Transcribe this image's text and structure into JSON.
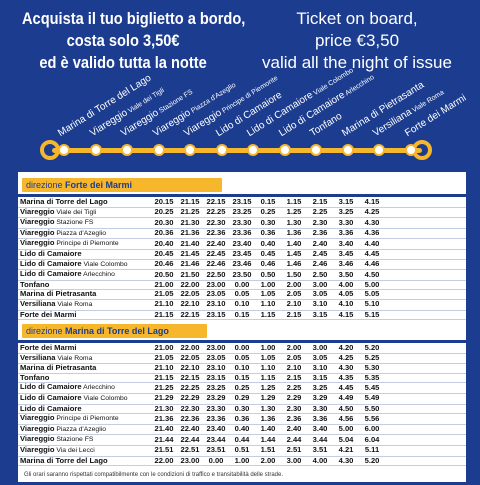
{
  "header": {
    "italian": [
      "Acquista il tuo biglietto a bordo,",
      "costa solo 3,50€",
      "ed è valido tutta la notte"
    ],
    "english": [
      "Ticket on board,",
      "price €3,50",
      "valid all the night of issue"
    ]
  },
  "route": {
    "stops": [
      {
        "main": "Marina di Torre del Lago",
        "sub": ""
      },
      {
        "main": "Viareggio",
        "sub": "Viale dei Tigli"
      },
      {
        "main": "Viareggio",
        "sub": "Stazione FS"
      },
      {
        "main": "Viareggio",
        "sub": "Piazza d'Azeglio"
      },
      {
        "main": "Viareggio",
        "sub": "Principe di Piemonte"
      },
      {
        "main": "Lido di Camaiore",
        "sub": ""
      },
      {
        "main": "Lido di Camaiore",
        "sub": "Viale Colombo"
      },
      {
        "main": "Lido di Camaiore",
        "sub": "Arlecchino"
      },
      {
        "main": "Tonfano",
        "sub": ""
      },
      {
        "main": "Marina di Pietrasanta",
        "sub": ""
      },
      {
        "main": "Versiliana",
        "sub": "Viale Roma"
      },
      {
        "main": "Forte dei Marmi",
        "sub": ""
      }
    ]
  },
  "timetable": {
    "north": {
      "direction_prefix": "direzione",
      "direction_name": "Forte dei Marmi",
      "rows": [
        {
          "main": "Marina di Torre del Lago",
          "sub": "",
          "times": [
            "20.15",
            "21.15",
            "22.15",
            "23.15",
            "0.15",
            "1.15",
            "2.15",
            "3.15",
            "4.15"
          ]
        },
        {
          "main": "Viareggio",
          "sub": "Viale dei Tigli",
          "times": [
            "20.25",
            "21.25",
            "22.25",
            "23.25",
            "0.25",
            "1.25",
            "2.25",
            "3.25",
            "4.25"
          ]
        },
        {
          "main": "Viareggio",
          "sub": "Stazione FS",
          "times": [
            "20.30",
            "21.30",
            "22.30",
            "23.30",
            "0.30",
            "1.30",
            "2.30",
            "3.30",
            "4.30"
          ]
        },
        {
          "main": "Viareggio",
          "sub": "Piazza d'Azeglio",
          "times": [
            "20.36",
            "21.36",
            "22.36",
            "23.36",
            "0.36",
            "1.36",
            "2.36",
            "3.36",
            "4.36"
          ]
        },
        {
          "main": "Viareggio",
          "sub": "Principe di Piemonte",
          "times": [
            "20.40",
            "21.40",
            "22.40",
            "23.40",
            "0.40",
            "1.40",
            "2.40",
            "3.40",
            "4.40"
          ]
        },
        {
          "main": "Lido di Camaiore",
          "sub": "",
          "times": [
            "20.45",
            "21.45",
            "22.45",
            "23.45",
            "0.45",
            "1.45",
            "2.45",
            "3.45",
            "4.45"
          ]
        },
        {
          "main": "Lido di Camaiore",
          "sub": "Viale Colombo",
          "times": [
            "20.46",
            "21.46",
            "22.46",
            "23.46",
            "0.46",
            "1.46",
            "2.46",
            "3.46",
            "4.46"
          ]
        },
        {
          "main": "Lido di Camaiore",
          "sub": "Arlecchino",
          "times": [
            "20.50",
            "21.50",
            "22.50",
            "23.50",
            "0.50",
            "1.50",
            "2.50",
            "3.50",
            "4.50"
          ]
        },
        {
          "main": "Tonfano",
          "sub": "",
          "times": [
            "21.00",
            "22.00",
            "23.00",
            "0.00",
            "1.00",
            "2.00",
            "3.00",
            "4.00",
            "5.00"
          ]
        },
        {
          "main": "Marina di Pietrasanta",
          "sub": "",
          "times": [
            "21.05",
            "22.05",
            "23.05",
            "0.05",
            "1.05",
            "2.05",
            "3.05",
            "4.05",
            "5.05"
          ]
        },
        {
          "main": "Versiliana",
          "sub": "Viale Roma",
          "times": [
            "21.10",
            "22.10",
            "23.10",
            "0.10",
            "1.10",
            "2.10",
            "3.10",
            "4.10",
            "5.10"
          ]
        },
        {
          "main": "Forte dei Marmi",
          "sub": "",
          "times": [
            "21.15",
            "22.15",
            "23.15",
            "0.15",
            "1.15",
            "2.15",
            "3.15",
            "4.15",
            "5.15"
          ]
        }
      ]
    },
    "south": {
      "direction_prefix": "direzione",
      "direction_name": "Marina di Torre del Lago",
      "rows": [
        {
          "main": "Forte dei Marmi",
          "sub": "",
          "times": [
            "21.00",
            "22.00",
            "23.00",
            "0.00",
            "1.00",
            "2.00",
            "3.00",
            "4.20",
            "5.20"
          ]
        },
        {
          "main": "Versiliana",
          "sub": "Viale Roma",
          "times": [
            "21.05",
            "22.05",
            "23.05",
            "0.05",
            "1.05",
            "2.05",
            "3.05",
            "4.25",
            "5.25"
          ]
        },
        {
          "main": "Marina di Pietrasanta",
          "sub": "",
          "times": [
            "21.10",
            "22.10",
            "23.10",
            "0.10",
            "1.10",
            "2.10",
            "3.10",
            "4.30",
            "5.30"
          ]
        },
        {
          "main": "Tonfano",
          "sub": "",
          "times": [
            "21.15",
            "22.15",
            "23.15",
            "0.15",
            "1.15",
            "2.15",
            "3.15",
            "4.35",
            "5.35"
          ]
        },
        {
          "main": "Lido di Camaiore",
          "sub": "Arlecchino",
          "times": [
            "21.25",
            "22.25",
            "23.25",
            "0.25",
            "1.25",
            "2.25",
            "3.25",
            "4.45",
            "5.45"
          ]
        },
        {
          "main": "Lido di Camaiore",
          "sub": "Viale Colombo",
          "times": [
            "21.29",
            "22.29",
            "23.29",
            "0.29",
            "1.29",
            "2.29",
            "3.29",
            "4.49",
            "5.49"
          ]
        },
        {
          "main": "Lido di Camaiore",
          "sub": "",
          "times": [
            "21.30",
            "22.30",
            "23.30",
            "0.30",
            "1.30",
            "2.30",
            "3.30",
            "4.50",
            "5.50"
          ]
        },
        {
          "main": "Viareggio",
          "sub": "Principe di Piemonte",
          "times": [
            "21.36",
            "22.36",
            "23.36",
            "0.36",
            "1.36",
            "2.36",
            "3.36",
            "4.56",
            "5.56"
          ]
        },
        {
          "main": "Viareggio",
          "sub": "Piazza d'Azeglio",
          "times": [
            "21.40",
            "22.40",
            "23.40",
            "0.40",
            "1.40",
            "2.40",
            "3.40",
            "5.00",
            "6.00"
          ]
        },
        {
          "main": "Viareggio",
          "sub": "Stazione FS",
          "times": [
            "21.44",
            "22.44",
            "23.44",
            "0.44",
            "1.44",
            "2.44",
            "3.44",
            "5.04",
            "6.04"
          ]
        },
        {
          "main": "Viareggio",
          "sub": "Via dei Lecci",
          "times": [
            "21.51",
            "22.51",
            "23.51",
            "0.51",
            "1.51",
            "2.51",
            "3.51",
            "4.21",
            "5.11"
          ]
        },
        {
          "main": "Marina di Torre del Lago",
          "sub": "",
          "times": [
            "22.00",
            "23.00",
            "0.00",
            "1.00",
            "2.00",
            "3.00",
            "4.00",
            "4.30",
            "5.20"
          ]
        }
      ]
    },
    "footnote": "Gli orari saranno rispettati compatibilmente con le condizioni di traffico e transitabilità delle strade."
  },
  "colors": {
    "background": "#1b3c8f",
    "accent": "#f6b72c",
    "panel": "#ffffff"
  }
}
